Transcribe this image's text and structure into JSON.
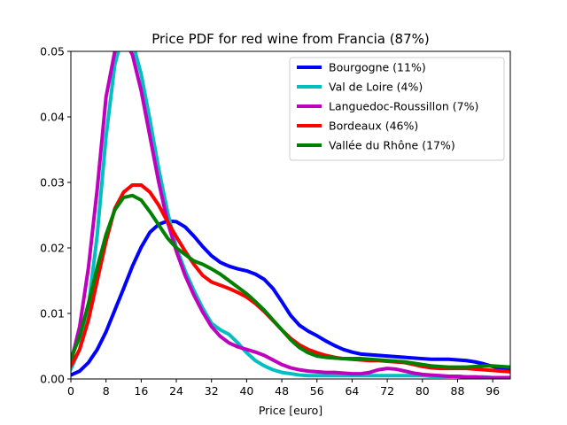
{
  "chart_data": {
    "type": "line",
    "title": "Price PDF for red wine from Francia (87%)",
    "xlabel": "Price [euro]",
    "ylabel": "",
    "xlim": [
      0,
      100
    ],
    "ylim": [
      0,
      0.05
    ],
    "xticks": [
      "0",
      "8",
      "16",
      "24",
      "32",
      "40",
      "48",
      "56",
      "64",
      "72",
      "80",
      "88",
      "96"
    ],
    "yticks": [
      "0.00",
      "0.01",
      "0.02",
      "0.03",
      "0.04",
      "0.05"
    ],
    "grid": false,
    "legend_position": "top-right",
    "x": [
      0,
      2,
      4,
      6,
      8,
      10,
      12,
      14,
      16,
      18,
      20,
      22,
      24,
      26,
      28,
      30,
      32,
      34,
      36,
      38,
      40,
      42,
      44,
      46,
      48,
      50,
      52,
      54,
      56,
      58,
      60,
      62,
      64,
      66,
      68,
      70,
      72,
      74,
      76,
      78,
      80,
      82,
      84,
      86,
      88,
      90,
      92,
      94,
      96,
      98,
      100
    ],
    "series": [
      {
        "name": "Bourgogne (11%)",
        "color": "#0000ff",
        "values": [
          0.0006,
          0.0012,
          0.0025,
          0.0045,
          0.0072,
          0.0105,
          0.0138,
          0.0172,
          0.0201,
          0.0224,
          0.0236,
          0.0241,
          0.024,
          0.0232,
          0.0218,
          0.0202,
          0.0188,
          0.0178,
          0.0172,
          0.0168,
          0.0165,
          0.016,
          0.0152,
          0.0138,
          0.0118,
          0.0097,
          0.0082,
          0.0073,
          0.0066,
          0.0058,
          0.0051,
          0.0045,
          0.0041,
          0.0038,
          0.0037,
          0.0036,
          0.0035,
          0.0034,
          0.0033,
          0.0032,
          0.0031,
          0.003,
          0.003,
          0.003,
          0.0029,
          0.0028,
          0.0026,
          0.0023,
          0.0019,
          0.0016,
          0.0013
        ]
      },
      {
        "name": "Val de Loire (4%)",
        "color": "#00bfbf",
        "values": [
          0.0015,
          0.0045,
          0.011,
          0.022,
          0.037,
          0.048,
          0.053,
          0.0515,
          0.0465,
          0.0395,
          0.032,
          0.0255,
          0.02,
          0.0165,
          0.0135,
          0.0108,
          0.0085,
          0.0075,
          0.0068,
          0.0055,
          0.004,
          0.0028,
          0.002,
          0.0014,
          0.001,
          0.0008,
          0.0006,
          0.0005,
          0.0005,
          0.0005,
          0.0005,
          0.0005,
          0.0005,
          0.0005,
          0.0005,
          0.0005,
          0.0005,
          0.0005,
          0.0005,
          0.0005,
          0.0005,
          0.0004,
          0.0004,
          0.0004,
          0.0004,
          0.0003,
          0.0003,
          0.0003,
          0.0002,
          0.0002,
          0.0002
        ]
      },
      {
        "name": "Languedoc-Roussillon (7%)",
        "color": "#bf00bf",
        "values": [
          0.0025,
          0.008,
          0.017,
          0.029,
          0.043,
          0.05,
          0.052,
          0.0495,
          0.044,
          0.037,
          0.03,
          0.024,
          0.0195,
          0.0158,
          0.0128,
          0.0102,
          0.008,
          0.0065,
          0.0055,
          0.0049,
          0.0045,
          0.0041,
          0.0036,
          0.0029,
          0.0022,
          0.0017,
          0.0014,
          0.0012,
          0.0011,
          0.001,
          0.001,
          0.0009,
          0.0008,
          0.0008,
          0.001,
          0.0014,
          0.0016,
          0.0015,
          0.0012,
          0.0009,
          0.0007,
          0.0006,
          0.0005,
          0.0004,
          0.0004,
          0.0003,
          0.0003,
          0.0002,
          0.0002,
          0.0002,
          0.0002
        ]
      },
      {
        "name": "Bordeaux (46%)",
        "color": "#ff0000",
        "values": [
          0.002,
          0.0045,
          0.009,
          0.015,
          0.021,
          0.026,
          0.0285,
          0.0296,
          0.0296,
          0.0285,
          0.0265,
          0.024,
          0.0217,
          0.0195,
          0.0175,
          0.0158,
          0.0148,
          0.0143,
          0.0138,
          0.0132,
          0.0125,
          0.0115,
          0.0103,
          0.0089,
          0.0075,
          0.0062,
          0.0052,
          0.0045,
          0.004,
          0.0036,
          0.0033,
          0.0031,
          0.003,
          0.0029,
          0.0028,
          0.0028,
          0.0027,
          0.0026,
          0.0025,
          0.0022,
          0.0019,
          0.0017,
          0.0016,
          0.0016,
          0.0016,
          0.0016,
          0.0015,
          0.0014,
          0.0013,
          0.0012,
          0.0011
        ]
      },
      {
        "name": "Vallée du Rhône (17%)",
        "color": "#008000",
        "values": [
          0.003,
          0.0065,
          0.0115,
          0.017,
          0.022,
          0.0258,
          0.0277,
          0.028,
          0.0273,
          0.0255,
          0.0235,
          0.0215,
          0.02,
          0.019,
          0.018,
          0.0175,
          0.0168,
          0.016,
          0.015,
          0.014,
          0.013,
          0.0118,
          0.0105,
          0.009,
          0.0075,
          0.006,
          0.0048,
          0.004,
          0.0035,
          0.0033,
          0.0032,
          0.0031,
          0.0031,
          0.0031,
          0.003,
          0.0029,
          0.0028,
          0.0027,
          0.0026,
          0.0024,
          0.0022,
          0.002,
          0.0019,
          0.0018,
          0.0018,
          0.0018,
          0.0019,
          0.002,
          0.002,
          0.0019,
          0.0018
        ]
      }
    ]
  }
}
